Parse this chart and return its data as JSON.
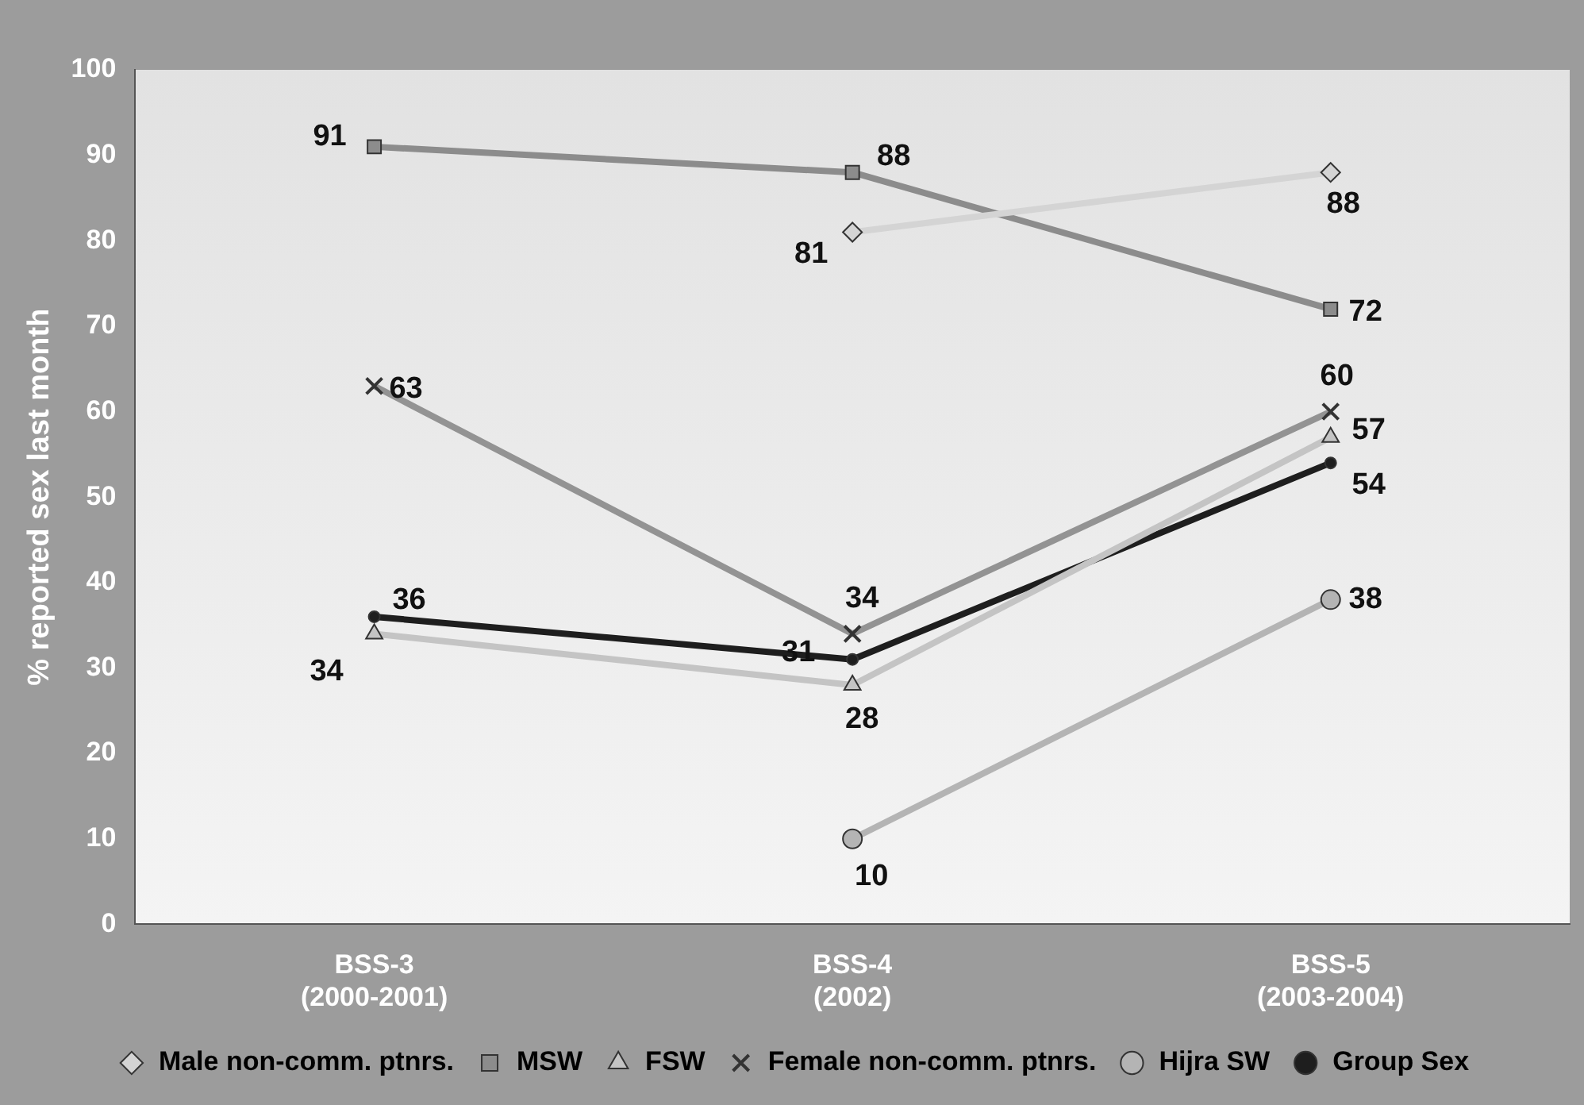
{
  "chart_data": {
    "type": "line",
    "ylabel": "% reported sex last month",
    "categories": [
      "BSS-3\n(2000-2001)",
      "BSS-4\n(2002)",
      "BSS-5\n(2003-2004)"
    ],
    "series": [
      {
        "name": "Male non-comm. ptnrs.",
        "color": "#d4d4d4",
        "marker": "diamond",
        "values": [
          null,
          81,
          88
        ]
      },
      {
        "name": "MSW",
        "color": "#8c8c8c",
        "marker": "square",
        "values": [
          91,
          88,
          72
        ]
      },
      {
        "name": "FSW",
        "color": "#c4c4c4",
        "marker": "triangle",
        "values": [
          34,
          28,
          57
        ]
      },
      {
        "name": "Female non-comm. ptnrs.",
        "color": "#939393",
        "marker": "cross",
        "values": [
          63,
          34,
          60
        ]
      },
      {
        "name": "Hijra SW",
        "color": "#b4b4b4",
        "marker": "circle",
        "values": [
          null,
          10,
          38
        ]
      },
      {
        "name": "Group Sex",
        "color": "#1e1e1e",
        "marker": "circle",
        "values": [
          36,
          31,
          54
        ]
      }
    ],
    "ylim": [
      0,
      100
    ],
    "yticks": [
      0,
      10,
      20,
      30,
      40,
      50,
      60,
      70,
      80,
      90,
      100
    ],
    "grid": false,
    "legend": "bottom",
    "data_labels": true,
    "line_style": "solid"
  }
}
